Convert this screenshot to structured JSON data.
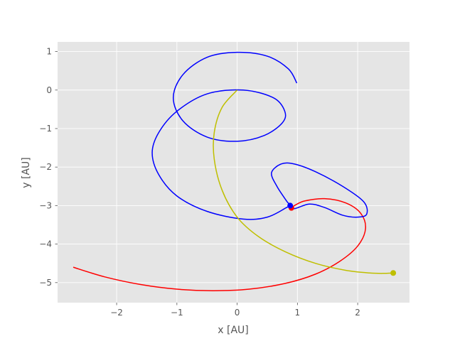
{
  "chart_data": {
    "type": "line",
    "title": "",
    "xlabel": "x [AU]",
    "ylabel": "y [AU]",
    "xlim": [
      -2.98,
      2.86
    ],
    "ylim": [
      -5.52,
      1.25
    ],
    "grid": true,
    "style": "ggplot",
    "x_ticks": [
      -2,
      -1,
      0,
      1,
      2
    ],
    "x_tick_labels": [
      "−2",
      "−1",
      "0",
      "1",
      "2"
    ],
    "y_ticks": [
      1,
      0,
      -1,
      -2,
      -3,
      -4,
      -5
    ],
    "y_tick_labels": [
      "1",
      "0",
      "−1",
      "−2",
      "−3",
      "−4",
      "−5"
    ],
    "colors": {
      "background": "#e5e5e5",
      "grid": "#ffffff",
      "tick_text": "#555555"
    },
    "series": [
      {
        "color": "#ff0000",
        "points": [
          [
            -2.72,
            -4.6
          ],
          [
            -2.2,
            -4.85
          ],
          [
            -1.6,
            -5.05
          ],
          [
            -1.0,
            -5.17
          ],
          [
            -0.4,
            -5.21
          ],
          [
            0.2,
            -5.17
          ],
          [
            0.8,
            -5.02
          ],
          [
            1.3,
            -4.78
          ],
          [
            1.7,
            -4.45
          ],
          [
            2.0,
            -4.05
          ],
          [
            2.13,
            -3.6
          ],
          [
            2.05,
            -3.2
          ],
          [
            1.8,
            -2.93
          ],
          [
            1.45,
            -2.82
          ],
          [
            1.12,
            -2.88
          ],
          [
            0.95,
            -3.0
          ],
          [
            0.9,
            -3.06
          ]
        ],
        "end_marker": [
          0.9,
          -3.06
        ]
      },
      {
        "color": "#0000ff",
        "points": [
          [
            0.99,
            0.18
          ],
          [
            0.85,
            0.55
          ],
          [
            0.5,
            0.88
          ],
          [
            0.0,
            0.98
          ],
          [
            -0.5,
            0.85
          ],
          [
            -0.9,
            0.4
          ],
          [
            -1.06,
            -0.2
          ],
          [
            -0.9,
            -0.8
          ],
          [
            -0.5,
            -1.22
          ],
          [
            0.0,
            -1.33
          ],
          [
            0.45,
            -1.18
          ],
          [
            0.75,
            -0.85
          ],
          [
            0.79,
            -0.55
          ],
          [
            0.6,
            -0.2
          ],
          [
            0.1,
            0.0
          ],
          [
            -0.5,
            -0.1
          ],
          [
            -1.0,
            -0.55
          ],
          [
            -1.3,
            -1.1
          ],
          [
            -1.41,
            -1.63
          ],
          [
            -1.3,
            -2.2
          ],
          [
            -1.0,
            -2.75
          ],
          [
            -0.5,
            -3.15
          ],
          [
            0.1,
            -3.35
          ],
          [
            0.5,
            -3.3
          ],
          [
            0.82,
            -3.05
          ],
          [
            0.88,
            -3.0
          ],
          [
            0.82,
            -2.88
          ],
          [
            0.66,
            -2.5
          ],
          [
            0.57,
            -2.15
          ],
          [
            0.73,
            -1.92
          ],
          [
            0.95,
            -1.92
          ],
          [
            1.3,
            -2.12
          ],
          [
            1.75,
            -2.5
          ],
          [
            2.1,
            -2.9
          ],
          [
            2.15,
            -3.22
          ],
          [
            2.0,
            -3.3
          ],
          [
            1.75,
            -3.25
          ],
          [
            1.45,
            -3.05
          ],
          [
            1.2,
            -2.96
          ],
          [
            0.95,
            -3.08
          ],
          [
            0.88,
            -3.0
          ]
        ],
        "end_marker": [
          0.88,
          -3.0
        ]
      },
      {
        "color": "#bfbf00",
        "points": [
          [
            0.0,
            0.0
          ],
          [
            -0.25,
            -0.45
          ],
          [
            -0.38,
            -1.1
          ],
          [
            -0.38,
            -1.8
          ],
          [
            -0.25,
            -2.6
          ],
          [
            0.0,
            -3.3
          ],
          [
            0.35,
            -3.8
          ],
          [
            0.8,
            -4.2
          ],
          [
            1.3,
            -4.5
          ],
          [
            1.8,
            -4.68
          ],
          [
            2.2,
            -4.75
          ],
          [
            2.45,
            -4.76
          ],
          [
            2.59,
            -4.75
          ]
        ],
        "end_marker": [
          2.59,
          -4.75
        ]
      }
    ]
  }
}
